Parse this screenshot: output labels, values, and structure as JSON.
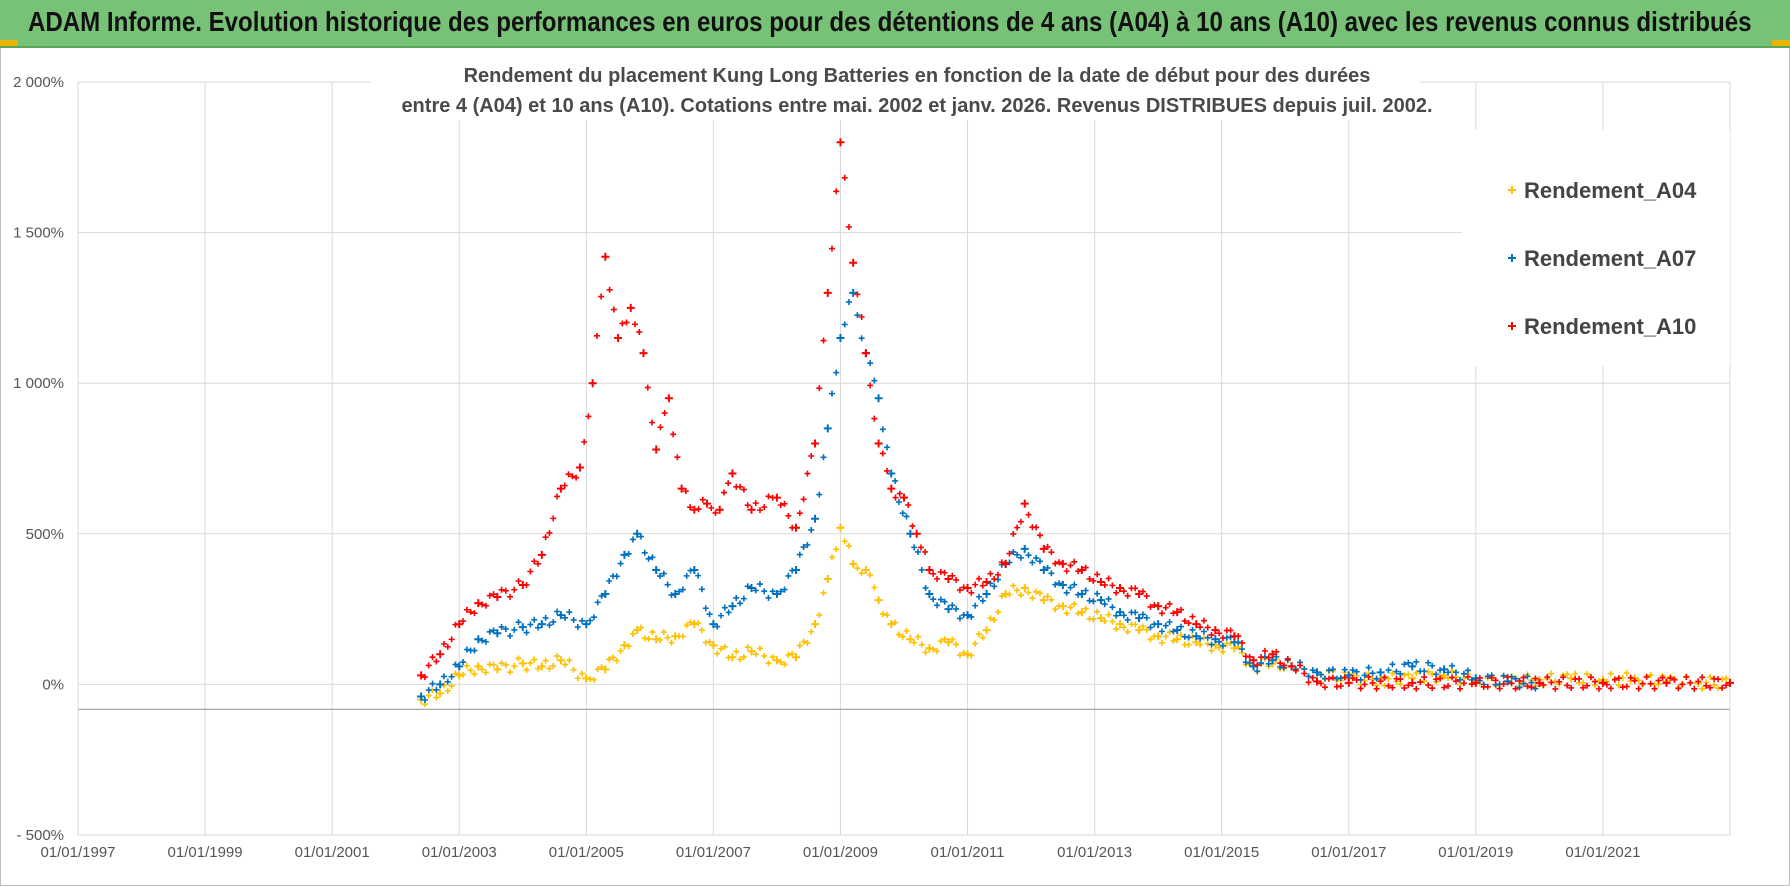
{
  "header": {
    "title": "ADAM Informe. Evolution historique des performances en euros pour des détentions de 4 ans (A04) à 10 ans (A10) avec les revenus connus distribués"
  },
  "colors": {
    "header_bg": "#77c276",
    "A04": "#ffc000",
    "A07": "#0070c0",
    "A10": "#ff0000",
    "grid": "#d9d9d9"
  },
  "chart_data": {
    "type": "scatter",
    "title_line1": "Rendement du placement Kung Long Batteries  en fonction de la date de début pour des durées",
    "title_line2": "entre 4 (A04) et 10 ans (A10). Cotations entre mai. 2002 et janv. 2026. Revenus DISTRIBUES depuis juil. 2002.",
    "xlabel": "",
    "ylabel": "",
    "ylim": [
      -500,
      2000
    ],
    "xlim": [
      1997.0,
      2023.0
    ],
    "y_ticks": [
      2000,
      1500,
      1000,
      500,
      0,
      -500
    ],
    "y_tick_labels": [
      "2 000%",
      "1 500%",
      "1 000%",
      "500%",
      "0%",
      "- 500%"
    ],
    "x_ticks": [
      1997,
      1999,
      2001,
      2003,
      2005,
      2007,
      2009,
      2011,
      2013,
      2015,
      2017,
      2019,
      2021
    ],
    "x_tick_labels": [
      "01/01/1997",
      "01/01/1999",
      "01/01/2001",
      "01/01/2003",
      "01/01/2005",
      "01/01/2007",
      "01/01/2009",
      "01/01/2011",
      "01/01/2013",
      "01/01/2015",
      "01/01/2017",
      "01/01/2019",
      "01/01/2021"
    ],
    "legend_position": "top-right",
    "series": [
      {
        "name": "Rendement_A04",
        "key": "A04",
        "x": [
          2002.4,
          2002.7,
          2003.0,
          2003.3,
          2003.6,
          2004.0,
          2004.3,
          2004.6,
          2005.0,
          2005.3,
          2005.6,
          2005.8,
          2006.1,
          2006.4,
          2006.7,
          2007.0,
          2007.3,
          2007.6,
          2008.0,
          2008.3,
          2008.6,
          2008.8,
          2009.0,
          2009.2,
          2009.4,
          2009.6,
          2009.8,
          2010.1,
          2010.4,
          2010.7,
          2011.0,
          2011.3,
          2011.6,
          2011.9,
          2012.2,
          2012.5,
          2012.8,
          2013.1,
          2013.4,
          2013.7,
          2014.0,
          2014.3,
          2014.6,
          2014.9,
          2015.2,
          2015.5,
          2015.8,
          2016.1,
          2016.5,
          2017.0,
          2017.5,
          2018.0,
          2018.5,
          2019.0,
          2019.5,
          2020.0,
          2020.5,
          2021.0,
          2021.5,
          2022.0,
          2022.5,
          2023.0
        ],
        "y": [
          -50,
          -30,
          30,
          60,
          50,
          70,
          60,
          80,
          20,
          50,
          130,
          180,
          150,
          160,
          200,
          130,
          90,
          110,
          80,
          90,
          200,
          350,
          520,
          400,
          380,
          280,
          200,
          150,
          120,
          140,
          100,
          180,
          300,
          320,
          280,
          260,
          240,
          220,
          200,
          180,
          160,
          150,
          140,
          130,
          120,
          60,
          70,
          60,
          40,
          20,
          15,
          20,
          30,
          10,
          10,
          15,
          20,
          15,
          20,
          10,
          5,
          5
        ]
      },
      {
        "name": "Rendement_A07",
        "key": "A07",
        "x": [
          2002.4,
          2002.7,
          2003.0,
          2003.3,
          2003.6,
          2004.0,
          2004.3,
          2004.6,
          2005.0,
          2005.3,
          2005.6,
          2005.8,
          2006.1,
          2006.4,
          2006.7,
          2007.0,
          2007.3,
          2007.6,
          2008.0,
          2008.3,
          2008.6,
          2008.8,
          2009.0,
          2009.2,
          2009.4,
          2009.6,
          2009.8,
          2010.1,
          2010.4,
          2010.7,
          2011.0,
          2011.3,
          2011.6,
          2011.9,
          2012.2,
          2012.5,
          2012.8,
          2013.1,
          2013.4,
          2013.7,
          2014.0,
          2014.3,
          2014.6,
          2014.9,
          2015.2,
          2015.5,
          2015.8,
          2016.1,
          2016.5,
          2017.0,
          2017.5,
          2018.0,
          2018.5,
          2019.0,
          2019.5,
          2020.0
        ],
        "y": [
          -40,
          0,
          60,
          150,
          170,
          190,
          200,
          230,
          200,
          300,
          430,
          500,
          380,
          300,
          380,
          200,
          260,
          320,
          300,
          380,
          550,
          850,
          1150,
          1300,
          1100,
          950,
          700,
          500,
          300,
          250,
          230,
          300,
          400,
          450,
          380,
          330,
          300,
          280,
          240,
          220,
          200,
          180,
          160,
          150,
          140,
          60,
          80,
          60,
          40,
          30,
          40,
          60,
          50,
          20,
          10,
          5
        ]
      },
      {
        "name": "Rendement_A10",
        "key": "A10",
        "x": [
          2002.4,
          2002.7,
          2003.0,
          2003.3,
          2003.6,
          2004.0,
          2004.3,
          2004.6,
          2004.9,
          2005.1,
          2005.3,
          2005.5,
          2005.7,
          2005.9,
          2006.1,
          2006.3,
          2006.5,
          2006.7,
          2006.9,
          2007.1,
          2007.3,
          2007.6,
          2008.0,
          2008.3,
          2008.6,
          2008.8,
          2009.0,
          2009.2,
          2009.4,
          2009.6,
          2009.8,
          2010.0,
          2010.2,
          2010.4,
          2010.7,
          2011.0,
          2011.3,
          2011.6,
          2011.9,
          2012.2,
          2012.5,
          2012.8,
          2013.1,
          2013.4,
          2013.7,
          2014.0,
          2014.3,
          2014.6,
          2014.9,
          2015.2,
          2015.5,
          2015.8,
          2016.1,
          2016.5,
          2017.0,
          2018.0,
          2019.0,
          2020.0,
          2021.0,
          2022.0,
          2023.0
        ],
        "y": [
          30,
          100,
          200,
          270,
          290,
          330,
          430,
          650,
          720,
          1000,
          1420,
          1150,
          1250,
          1100,
          780,
          950,
          650,
          580,
          600,
          580,
          700,
          580,
          620,
          520,
          800,
          1300,
          1800,
          1400,
          1100,
          800,
          650,
          620,
          500,
          380,
          350,
          320,
          340,
          400,
          600,
          450,
          400,
          380,
          340,
          320,
          300,
          260,
          240,
          200,
          180,
          160,
          80,
          100,
          60,
          10,
          5,
          5,
          5,
          5,
          5,
          5,
          5
        ]
      }
    ]
  }
}
